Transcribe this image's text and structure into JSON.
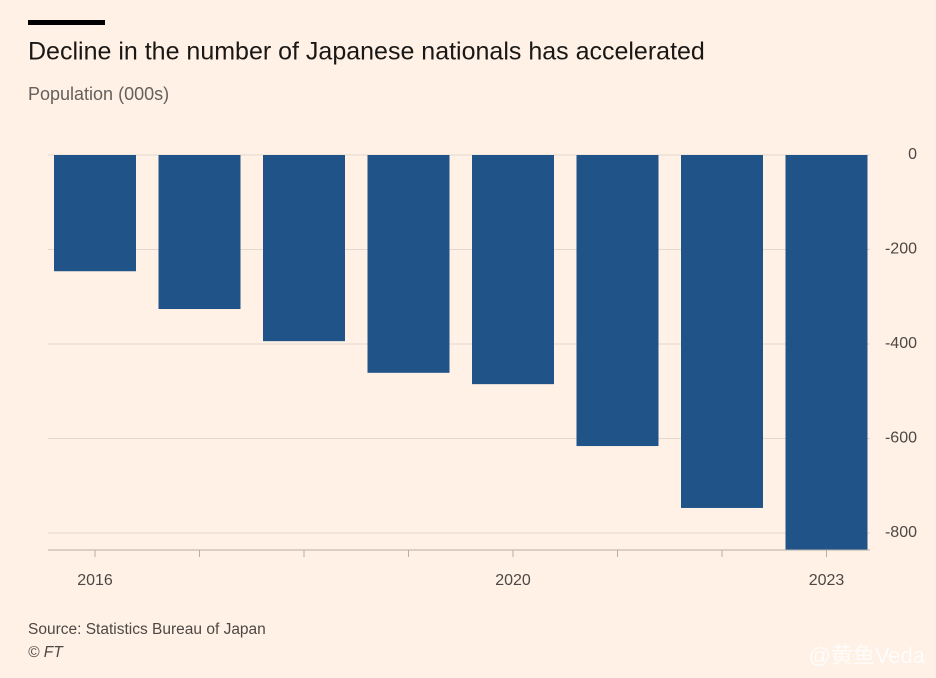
{
  "chart_data": {
    "type": "bar",
    "title": "Decline in the number of Japanese nationals has accelerated",
    "subtitle": "Population (000s)",
    "categories": [
      "2016",
      null,
      null,
      null,
      "2020",
      null,
      null,
      "2023"
    ],
    "values": [
      -246,
      -326,
      -394,
      -461,
      -485,
      -616,
      -747,
      -836
    ],
    "color": "#205387",
    "ylim": [
      -836,
      0
    ],
    "yticks": [
      0,
      -200,
      -400,
      -600,
      -800
    ],
    "grid": true,
    "source": "Source: Statistics Bureau of Japan",
    "credit": "© FT",
    "watermark": "@黄鱼Veda"
  }
}
